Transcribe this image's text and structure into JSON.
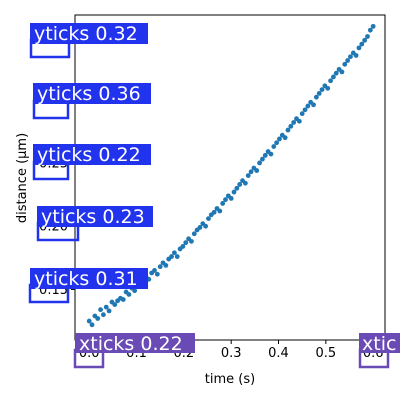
{
  "chart_data": {
    "type": "scatter",
    "xlabel": "time (s)",
    "ylabel": "distance (µm)",
    "xlim": [
      -0.03,
      0.625
    ],
    "ylim": [
      0.11,
      0.367
    ],
    "xticks": [
      0.0,
      0.1,
      0.2,
      0.3,
      0.4,
      0.5,
      0.6
    ],
    "xtick_labels": [
      "0.0",
      "0.1",
      "0.2",
      "0.3",
      "0.4",
      "0.5",
      "0.6"
    ],
    "yticks": [
      0.15,
      0.2,
      0.25,
      0.3,
      0.35
    ],
    "ytick_labels": [
      "0.15",
      "0.20",
      "0.25",
      "0.30",
      "0.35"
    ],
    "grid": false,
    "colors": {
      "main": "#1f77b4",
      "outlier": "#ff7f0e"
    },
    "series": [
      {
        "color": "#1f77b4",
        "points_summary": "roughly linear trend from (0.0, 0.125) to (0.6, 0.358)",
        "x": [
          0.0,
          0.006,
          0.012,
          0.018,
          0.024,
          0.03,
          0.036,
          0.042,
          0.048,
          0.054,
          0.06,
          0.066,
          0.072,
          0.078,
          0.084,
          0.09,
          0.096,
          0.102,
          0.108,
          0.114,
          0.12,
          0.126,
          0.132,
          0.138,
          0.144,
          0.15,
          0.156,
          0.162,
          0.168,
          0.174,
          0.18,
          0.186,
          0.192,
          0.198,
          0.204,
          0.21,
          0.216,
          0.222,
          0.228,
          0.234,
          0.24,
          0.246,
          0.252,
          0.258,
          0.264,
          0.27,
          0.276,
          0.282,
          0.288,
          0.294,
          0.3,
          0.306,
          0.312,
          0.318,
          0.324,
          0.33,
          0.336,
          0.342,
          0.348,
          0.354,
          0.36,
          0.366,
          0.372,
          0.378,
          0.384,
          0.39,
          0.396,
          0.402,
          0.408,
          0.414,
          0.42,
          0.426,
          0.432,
          0.438,
          0.444,
          0.45,
          0.456,
          0.462,
          0.468,
          0.474,
          0.48,
          0.486,
          0.492,
          0.498,
          0.504,
          0.51,
          0.516,
          0.522,
          0.528,
          0.534,
          0.54,
          0.546,
          0.552,
          0.558,
          0.564,
          0.57,
          0.576,
          0.582,
          0.588,
          0.594,
          0.6
        ],
        "y": [
          0.125,
          0.122,
          0.129,
          0.127,
          0.134,
          0.13,
          0.136,
          0.133,
          0.14,
          0.138,
          0.141,
          0.143,
          0.142,
          0.148,
          0.146,
          0.151,
          0.149,
          0.155,
          0.153,
          0.157,
          0.16,
          0.158,
          0.163,
          0.165,
          0.162,
          0.168,
          0.171,
          0.169,
          0.174,
          0.176,
          0.179,
          0.176,
          0.182,
          0.184,
          0.187,
          0.19,
          0.188,
          0.194,
          0.197,
          0.199,
          0.202,
          0.2,
          0.206,
          0.209,
          0.211,
          0.214,
          0.212,
          0.218,
          0.221,
          0.224,
          0.222,
          0.227,
          0.23,
          0.233,
          0.236,
          0.234,
          0.24,
          0.243,
          0.246,
          0.244,
          0.25,
          0.253,
          0.256,
          0.259,
          0.257,
          0.263,
          0.266,
          0.269,
          0.272,
          0.27,
          0.276,
          0.279,
          0.282,
          0.285,
          0.283,
          0.289,
          0.292,
          0.295,
          0.298,
          0.296,
          0.302,
          0.305,
          0.308,
          0.311,
          0.309,
          0.315,
          0.318,
          0.321,
          0.324,
          0.322,
          0.328,
          0.331,
          0.334,
          0.337,
          0.335,
          0.341,
          0.344,
          0.347,
          0.35,
          0.355,
          0.358
        ]
      },
      {
        "color": "#ff7f0e",
        "x": [
          0.01
        ],
        "y": [
          0.208
        ]
      }
    ]
  },
  "annotations": [
    {
      "text": "yticks 0.32",
      "tick_label": "0.35",
      "color": "#2233ee"
    },
    {
      "text": "yticks 0.36",
      "tick_label": "0.30",
      "color": "#2233ee"
    },
    {
      "text": "yticks 0.22",
      "tick_label": "0.25",
      "color": "#2233ee"
    },
    {
      "text": "yticks 0.23",
      "tick_label": "0.20",
      "color": "#2233ee"
    },
    {
      "text": "yticks 0.31",
      "tick_label": "0.15",
      "color": "#2233ee"
    },
    {
      "text": "xticks 0.22",
      "tick_label": "0.0",
      "color": "#6a4bb5"
    },
    {
      "text": "xtic",
      "tick_label": "0.6",
      "color": "#6a4bb5"
    }
  ]
}
